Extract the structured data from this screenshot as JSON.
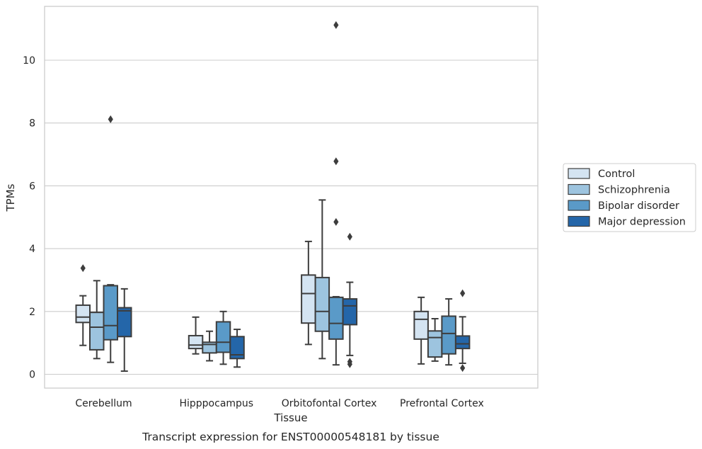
{
  "chart_data": {
    "type": "box",
    "title": "",
    "caption": "Transcript expression for ENST00000548181 by tissue",
    "xlabel": "Tissue",
    "ylabel": "TPMs",
    "ylim": [
      -0.45,
      11.7
    ],
    "yticks": [
      0,
      2,
      4,
      6,
      8,
      10
    ],
    "grid": "horizontal",
    "legend_position": "right",
    "categories": [
      "Cerebellum",
      "Hipppocampus",
      "Orbitofontal Cortex",
      "Prefrontal Cortex"
    ],
    "series": [
      {
        "name": "Control",
        "color": "#d4e4f2",
        "boxes": [
          {
            "whislo": 0.92,
            "q1": 1.65,
            "med": 1.82,
            "q3": 2.2,
            "whishi": 2.5,
            "fliers": [
              3.38
            ]
          },
          {
            "whislo": 0.65,
            "q1": 0.82,
            "med": 0.93,
            "q3": 1.23,
            "whishi": 1.82,
            "fliers": []
          },
          {
            "whislo": 0.95,
            "q1": 1.63,
            "med": 2.57,
            "q3": 3.16,
            "whishi": 4.23,
            "fliers": []
          },
          {
            "whislo": 0.33,
            "q1": 1.12,
            "med": 1.75,
            "q3": 2.0,
            "whishi": 2.45,
            "fliers": []
          }
        ]
      },
      {
        "name": "Schizophrenia",
        "color": "#9dc4df",
        "boxes": [
          {
            "whislo": 0.5,
            "q1": 0.78,
            "med": 1.5,
            "q3": 1.97,
            "whishi": 2.98,
            "fliers": []
          },
          {
            "whislo": 0.43,
            "q1": 0.68,
            "med": 0.95,
            "q3": 1.02,
            "whishi": 1.37,
            "fliers": []
          },
          {
            "whislo": 0.5,
            "q1": 1.37,
            "med": 2.0,
            "q3": 3.08,
            "whishi": 5.55,
            "fliers": []
          },
          {
            "whislo": 0.42,
            "q1": 0.55,
            "med": 1.17,
            "q3": 1.38,
            "whishi": 1.77,
            "fliers": []
          }
        ]
      },
      {
        "name": "Bipolar disorder",
        "color": "#5a9ac8",
        "boxes": [
          {
            "whislo": 0.38,
            "q1": 1.1,
            "med": 1.55,
            "q3": 2.82,
            "whishi": 2.85,
            "fliers": [
              8.12
            ]
          },
          {
            "whislo": 0.32,
            "q1": 0.7,
            "med": 1.02,
            "q3": 1.67,
            "whishi": 2.0,
            "fliers": []
          },
          {
            "whislo": 0.3,
            "q1": 1.12,
            "med": 1.62,
            "q3": 2.45,
            "whishi": 2.47,
            "fliers": [
              11.12,
              6.78,
              4.85
            ]
          },
          {
            "whislo": 0.3,
            "q1": 0.65,
            "med": 1.3,
            "q3": 1.85,
            "whishi": 2.4,
            "fliers": []
          }
        ]
      },
      {
        "name": "Major depression",
        "color": "#2466a9",
        "boxes": [
          {
            "whislo": 0.1,
            "q1": 1.2,
            "med": 2.02,
            "q3": 2.12,
            "whishi": 2.72,
            "fliers": []
          },
          {
            "whislo": 0.23,
            "q1": 0.5,
            "med": 0.62,
            "q3": 1.2,
            "whishi": 1.43,
            "fliers": []
          },
          {
            "whislo": 0.6,
            "q1": 1.58,
            "med": 2.18,
            "q3": 2.4,
            "whishi": 2.93,
            "fliers": [
              4.38,
              0.4,
              0.32
            ]
          },
          {
            "whislo": 0.35,
            "q1": 0.82,
            "med": 0.97,
            "q3": 1.22,
            "whishi": 1.83,
            "fliers": [
              2.58,
              0.2
            ]
          }
        ]
      }
    ]
  }
}
